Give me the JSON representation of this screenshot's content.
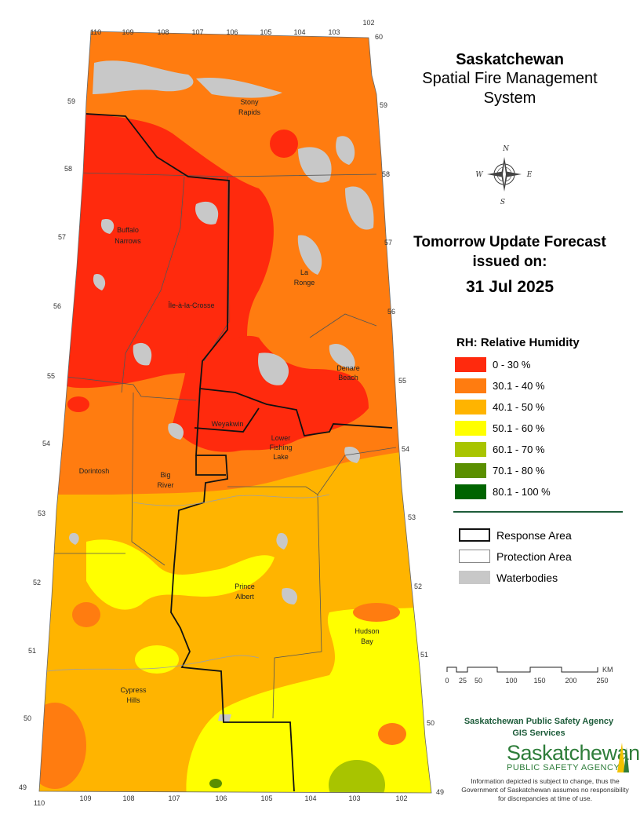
{
  "title": {
    "line1": "Saskatchewan",
    "line2": "Spatial Fire Management",
    "line3": "System"
  },
  "forecast": {
    "line1": "Tomorrow Update Forecast",
    "line2": "issued on:",
    "date": "31 Jul 2025"
  },
  "compass": {
    "icon": "compass-rose-icon",
    "n": "N",
    "s": "S",
    "e": "E",
    "w": "W"
  },
  "legend": {
    "title": "RH: Relative Humidity",
    "classes": [
      {
        "label": "0 - 30 %",
        "color": "#ff2a0d"
      },
      {
        "label": "30.1 - 40 %",
        "color": "#ff7c10"
      },
      {
        "label": "40.1 - 50 %",
        "color": "#ffb400"
      },
      {
        "label": "50.1 - 60 %",
        "color": "#ffff00"
      },
      {
        "label": "60.1 - 70 %",
        "color": "#a8c400"
      },
      {
        "label": "70.1 - 80 %",
        "color": "#5a8f00"
      },
      {
        "label": "80.1 - 100 %",
        "color": "#006400"
      }
    ],
    "boundaries": [
      {
        "label": "Response Area",
        "style": "thick"
      },
      {
        "label": "Protection Area",
        "style": "thin"
      },
      {
        "label": "Waterbodies",
        "style": "fill",
        "color": "#c8c8c8"
      }
    ]
  },
  "scale_bar": {
    "unit": "KM",
    "ticks": [
      "0",
      "25",
      "50",
      "100",
      "150",
      "200",
      "250"
    ]
  },
  "agency": {
    "line1": "Saskatchewan Public Safety Agency",
    "line2": "GIS  Services"
  },
  "logo": {
    "word1": "Saskatchewan",
    "word2": "PUBLIC SAFETY AGENCY"
  },
  "disclaimer": "Information depicted is subject to change, thus the Government of Saskatchewan assumes no responsibility for discrepancies at time of use.",
  "places": [
    "Stony Rapids",
    "Buffalo Narrows",
    "La Ronge",
    "Île-à-la-Crosse",
    "Denare Beach",
    "Weyakwin",
    "Lower Fishing Lake",
    "Dorintosh",
    "Big River",
    "Prince Albert",
    "Hudson Bay",
    "Cypress Hills"
  ],
  "longitudes_top": [
    "110",
    "109",
    "108",
    "107",
    "106",
    "105",
    "104",
    "103",
    "102"
  ],
  "longitudes_bottom": [
    "110",
    "109",
    "108",
    "107",
    "106",
    "105",
    "104",
    "103",
    "102"
  ],
  "latitudes": [
    "60",
    "59",
    "58",
    "57",
    "56",
    "55",
    "54",
    "53",
    "52",
    "51",
    "50",
    "49"
  ]
}
